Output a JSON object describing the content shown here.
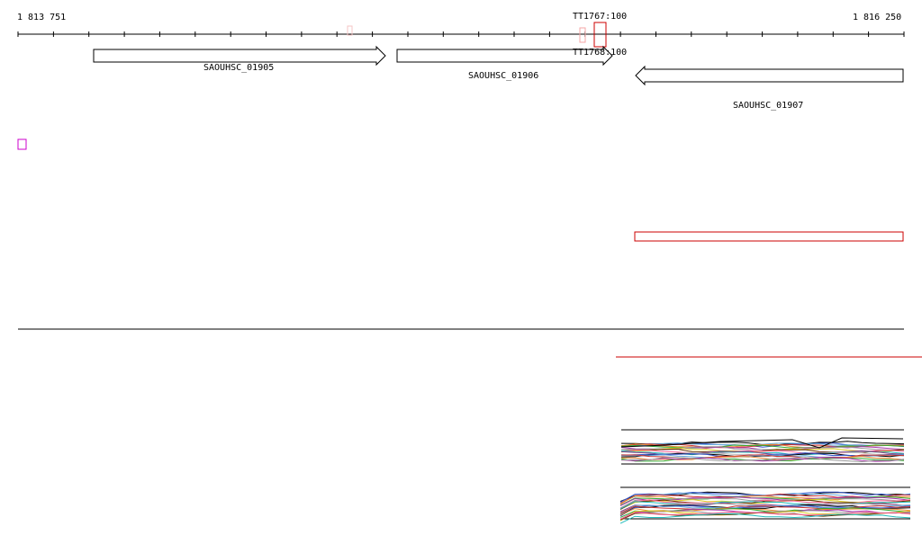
{
  "ruler": {
    "start_label": "1 813 751",
    "end_label": "1 816 250",
    "start": 1813751,
    "end": 1816250
  },
  "genes": [
    {
      "name": "SAOUHSC_01905",
      "strand": "+"
    },
    {
      "name": "SAOUHSC_01906",
      "strand": "+"
    },
    {
      "name": "SAOUHSC_01907",
      "strand": "-"
    }
  ],
  "terminators": [
    {
      "label": "TT1767:100",
      "strand": "+"
    },
    {
      "label": "TT1768:100",
      "strand": "-"
    }
  ],
  "colors": {
    "axis": "#000000",
    "gene_outline": "#000000",
    "highlight": "#cc0000",
    "magenta_marker": "#cc00cc",
    "pink_marker": "#f4a6a6"
  }
}
